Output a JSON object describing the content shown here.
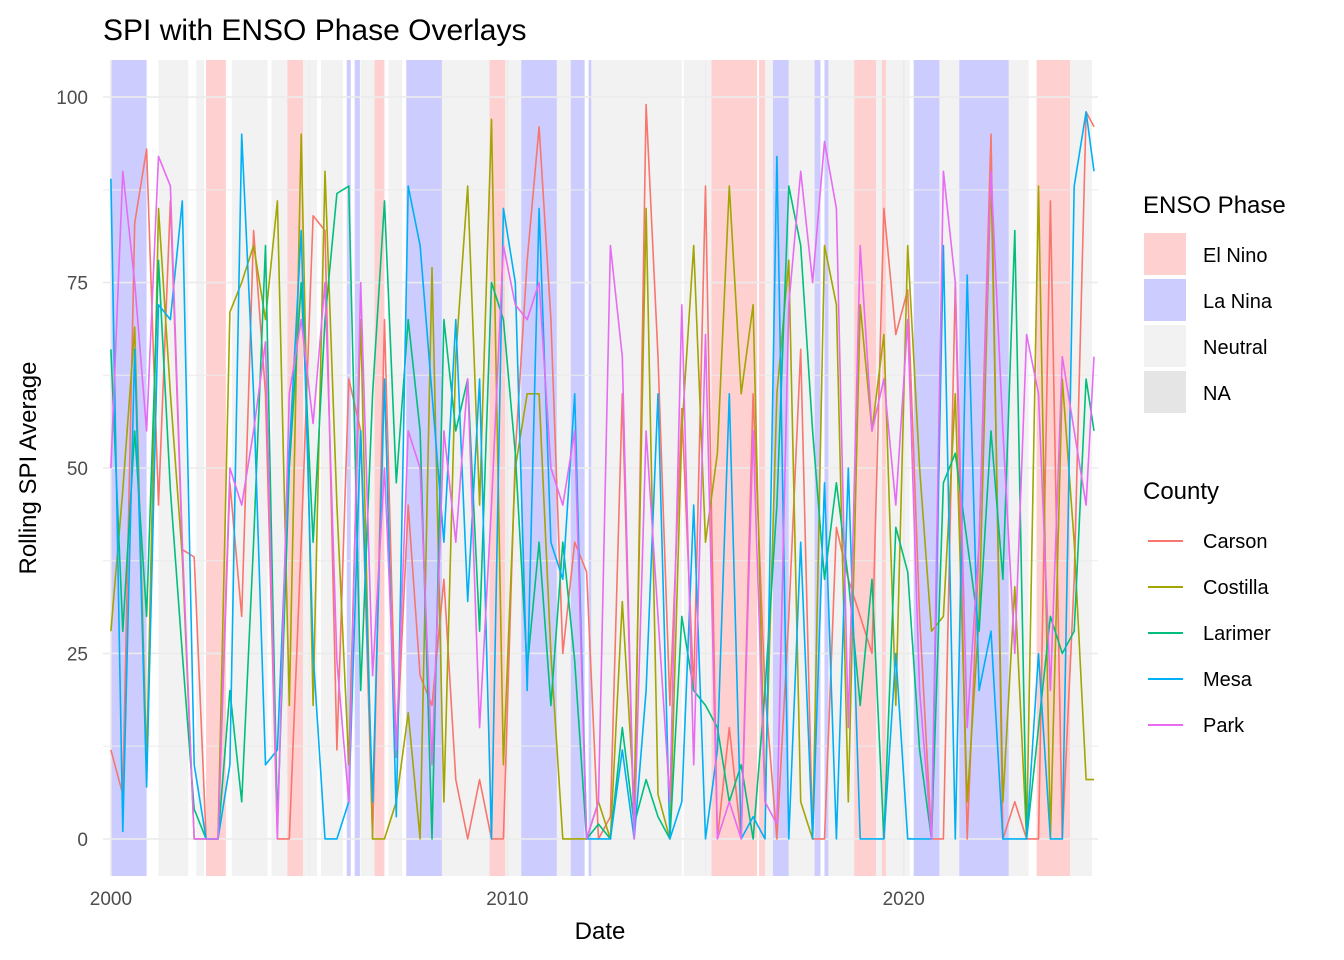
{
  "chart_data": {
    "type": "line",
    "title": "SPI with ENSO Phase Overlays",
    "xlabel": "Date",
    "ylabel": "Rolling SPI Average",
    "xlim": [
      1999.8,
      2024.9
    ],
    "ylim": [
      -5,
      105
    ],
    "x_ticks": [
      2000,
      2010,
      2020
    ],
    "x_tick_labels": [
      "2000",
      "2010",
      "2020"
    ],
    "y_ticks": [
      0,
      25,
      50,
      75,
      100
    ],
    "y_tick_labels": [
      "0",
      "25",
      "50",
      "75",
      "100"
    ],
    "grid": true,
    "legend_position": "right",
    "enso_legend": {
      "title": "ENSO Phase",
      "items": [
        {
          "label": "El Nino",
          "color": "#ffd0d0"
        },
        {
          "label": "La Nina",
          "color": "#ccccff"
        },
        {
          "label": "Neutral",
          "color": "#f2f2f2"
        },
        {
          "label": "NA",
          "color": "#e5e5e5"
        }
      ]
    },
    "enso_periods": [
      {
        "start": 2000.0,
        "end": 2000.9,
        "phase": "La Nina"
      },
      {
        "start": 2001.2,
        "end": 2001.95,
        "phase": "Neutral"
      },
      {
        "start": 2002.15,
        "end": 2002.35,
        "phase": "Neutral"
      },
      {
        "start": 2002.4,
        "end": 2002.9,
        "phase": "El Nino"
      },
      {
        "start": 2003.05,
        "end": 2003.95,
        "phase": "Neutral"
      },
      {
        "start": 2004.05,
        "end": 2004.45,
        "phase": "Neutral"
      },
      {
        "start": 2004.45,
        "end": 2004.85,
        "phase": "El Nino"
      },
      {
        "start": 2004.85,
        "end": 2005.2,
        "phase": "Neutral"
      },
      {
        "start": 2005.3,
        "end": 2005.85,
        "phase": "Neutral"
      },
      {
        "start": 2005.95,
        "end": 2006.05,
        "phase": "La Nina"
      },
      {
        "start": 2006.15,
        "end": 2006.28,
        "phase": "La Nina"
      },
      {
        "start": 2006.3,
        "end": 2006.65,
        "phase": "Neutral"
      },
      {
        "start": 2006.65,
        "end": 2006.9,
        "phase": "El Nino"
      },
      {
        "start": 2007.0,
        "end": 2007.35,
        "phase": "Neutral"
      },
      {
        "start": 2007.45,
        "end": 2008.35,
        "phase": "La Nina"
      },
      {
        "start": 2008.35,
        "end": 2009.55,
        "phase": "Neutral"
      },
      {
        "start": 2009.55,
        "end": 2009.95,
        "phase": "El Nino"
      },
      {
        "start": 2009.95,
        "end": 2010.35,
        "phase": "Neutral"
      },
      {
        "start": 2010.35,
        "end": 2011.25,
        "phase": "La Nina"
      },
      {
        "start": 2011.25,
        "end": 2011.6,
        "phase": "Neutral"
      },
      {
        "start": 2011.6,
        "end": 2011.95,
        "phase": "La Nina"
      },
      {
        "start": 2012.05,
        "end": 2012.12,
        "phase": "La Nina"
      },
      {
        "start": 2012.12,
        "end": 2014.4,
        "phase": "Neutral"
      },
      {
        "start": 2014.45,
        "end": 2015.0,
        "phase": "Neutral"
      },
      {
        "start": 2015.0,
        "end": 2015.15,
        "phase": "Neutral"
      },
      {
        "start": 2015.15,
        "end": 2016.3,
        "phase": "El Nino"
      },
      {
        "start": 2016.35,
        "end": 2016.5,
        "phase": "El Nino"
      },
      {
        "start": 2016.5,
        "end": 2016.7,
        "phase": "Neutral"
      },
      {
        "start": 2016.7,
        "end": 2017.1,
        "phase": "La Nina"
      },
      {
        "start": 2017.1,
        "end": 2017.75,
        "phase": "Neutral"
      },
      {
        "start": 2017.75,
        "end": 2017.9,
        "phase": "La Nina"
      },
      {
        "start": 2018.0,
        "end": 2018.1,
        "phase": "La Nina"
      },
      {
        "start": 2018.1,
        "end": 2018.75,
        "phase": "Neutral"
      },
      {
        "start": 2018.75,
        "end": 2019.3,
        "phase": "El Nino"
      },
      {
        "start": 2019.3,
        "end": 2019.45,
        "phase": "Neutral"
      },
      {
        "start": 2019.45,
        "end": 2019.55,
        "phase": "El Nino"
      },
      {
        "start": 2019.55,
        "end": 2020.15,
        "phase": "Neutral"
      },
      {
        "start": 2020.25,
        "end": 2020.9,
        "phase": "La Nina"
      },
      {
        "start": 2020.9,
        "end": 2021.4,
        "phase": "Neutral"
      },
      {
        "start": 2021.4,
        "end": 2022.65,
        "phase": "La Nina"
      },
      {
        "start": 2022.65,
        "end": 2023.15,
        "phase": "Neutral"
      },
      {
        "start": 2023.35,
        "end": 2024.2,
        "phase": "El Nino"
      },
      {
        "start": 2024.2,
        "end": 2024.75,
        "phase": "Neutral"
      }
    ],
    "county_legend_title": "County",
    "series": [
      {
        "name": "Carson",
        "color": "#F8766D",
        "x": [
          2000.0,
          2000.3,
          2000.6,
          2000.9,
          2001.2,
          2001.5,
          2001.8,
          2002.1,
          2002.4,
          2002.7,
          2003.0,
          2003.3,
          2003.6,
          2003.9,
          2004.2,
          2004.5,
          2004.8,
          2005.1,
          2005.4,
          2005.7,
          2006.0,
          2006.3,
          2006.6,
          2006.9,
          2007.2,
          2007.5,
          2007.8,
          2008.1,
          2008.4,
          2008.7,
          2009.0,
          2009.3,
          2009.6,
          2009.9,
          2010.2,
          2010.5,
          2010.8,
          2011.1,
          2011.4,
          2011.7,
          2012.0,
          2012.3,
          2012.6,
          2012.9,
          2013.2,
          2013.5,
          2013.8,
          2014.1,
          2014.4,
          2014.7,
          2015.0,
          2015.3,
          2015.6,
          2015.9,
          2016.2,
          2016.5,
          2016.8,
          2017.1,
          2017.4,
          2017.7,
          2018.0,
          2018.3,
          2018.6,
          2018.9,
          2019.2,
          2019.5,
          2019.8,
          2020.1,
          2020.4,
          2020.7,
          2021.0,
          2021.3,
          2021.6,
          2021.9,
          2022.2,
          2022.5,
          2022.8,
          2023.1,
          2023.4,
          2023.7,
          2024.0,
          2024.3,
          2024.6,
          2024.8
        ],
        "values": [
          12,
          6,
          83,
          93,
          45,
          86,
          39,
          38,
          0,
          0,
          48,
          30,
          82,
          60,
          0,
          0,
          40,
          84,
          82,
          12,
          62,
          55,
          0,
          70,
          11,
          45,
          22,
          18,
          35,
          8,
          0,
          8,
          0,
          0,
          52,
          78,
          96,
          70,
          25,
          40,
          36,
          0,
          3,
          60,
          0,
          99,
          65,
          18,
          58,
          20,
          88,
          0,
          15,
          0,
          60,
          20,
          0,
          30,
          66,
          0,
          0,
          42,
          35,
          30,
          25,
          85,
          68,
          74,
          30,
          0,
          0,
          75,
          0,
          40,
          95,
          0,
          5,
          0,
          0,
          86,
          0,
          35,
          98,
          96
        ]
      },
      {
        "name": "Costilla",
        "color": "#A3A500",
        "x": [
          2000.0,
          2000.3,
          2000.6,
          2000.9,
          2001.2,
          2001.5,
          2001.8,
          2002.1,
          2002.4,
          2002.7,
          2003.0,
          2003.3,
          2003.6,
          2003.9,
          2004.2,
          2004.5,
          2004.8,
          2005.1,
          2005.4,
          2005.7,
          2006.0,
          2006.3,
          2006.6,
          2006.9,
          2007.2,
          2007.5,
          2007.8,
          2008.1,
          2008.4,
          2008.7,
          2009.0,
          2009.3,
          2009.6,
          2009.9,
          2010.2,
          2010.5,
          2010.8,
          2011.1,
          2011.4,
          2011.7,
          2012.0,
          2012.3,
          2012.6,
          2012.9,
          2013.2,
          2013.5,
          2013.8,
          2014.1,
          2014.4,
          2014.7,
          2015.0,
          2015.3,
          2015.6,
          2015.9,
          2016.2,
          2016.5,
          2016.8,
          2017.1,
          2017.4,
          2017.7,
          2018.0,
          2018.3,
          2018.6,
          2018.9,
          2019.2,
          2019.5,
          2019.8,
          2020.1,
          2020.4,
          2020.7,
          2021.0,
          2021.3,
          2021.6,
          2021.9,
          2022.2,
          2022.5,
          2022.8,
          2023.1,
          2023.4,
          2023.7,
          2024.0,
          2024.3,
          2024.6,
          2024.8
        ],
        "values": [
          28,
          47,
          69,
          10,
          85,
          60,
          38,
          0,
          0,
          0,
          71,
          75,
          80,
          70,
          86,
          18,
          95,
          18,
          90,
          45,
          10,
          70,
          0,
          0,
          5,
          17,
          0,
          77,
          5,
          65,
          88,
          45,
          97,
          10,
          50,
          60,
          60,
          25,
          0,
          0,
          0,
          5,
          0,
          32,
          5,
          85,
          6,
          0,
          55,
          80,
          40,
          52,
          88,
          60,
          72,
          5,
          60,
          78,
          5,
          0,
          80,
          72,
          5,
          72,
          55,
          68,
          18,
          80,
          50,
          28,
          30,
          60,
          5,
          30,
          90,
          5,
          34,
          0,
          88,
          0,
          62,
          40,
          8,
          8
        ]
      },
      {
        "name": "Larimer",
        "color": "#00BF7D",
        "x": [
          2000.0,
          2000.3,
          2000.6,
          2000.9,
          2001.2,
          2001.5,
          2001.8,
          2002.1,
          2002.4,
          2002.7,
          2003.0,
          2003.3,
          2003.6,
          2003.9,
          2004.2,
          2004.5,
          2004.8,
          2005.1,
          2005.4,
          2005.7,
          2006.0,
          2006.3,
          2006.6,
          2006.9,
          2007.2,
          2007.5,
          2007.8,
          2008.1,
          2008.4,
          2008.7,
          2009.0,
          2009.3,
          2009.6,
          2009.9,
          2010.2,
          2010.5,
          2010.8,
          2011.1,
          2011.4,
          2011.7,
          2012.0,
          2012.3,
          2012.6,
          2012.9,
          2013.2,
          2013.5,
          2013.8,
          2014.1,
          2014.4,
          2014.7,
          2015.0,
          2015.3,
          2015.6,
          2015.9,
          2016.2,
          2016.5,
          2016.8,
          2017.1,
          2017.4,
          2017.7,
          2018.0,
          2018.3,
          2018.6,
          2018.9,
          2019.2,
          2019.5,
          2019.8,
          2020.1,
          2020.4,
          2020.7,
          2021.0,
          2021.3,
          2021.6,
          2021.9,
          2022.2,
          2022.5,
          2022.8,
          2023.1,
          2023.4,
          2023.7,
          2024.0,
          2024.3,
          2024.6,
          2024.8
        ],
        "values": [
          66,
          28,
          55,
          30,
          78,
          47,
          25,
          4,
          0,
          0,
          20,
          5,
          40,
          80,
          2,
          50,
          75,
          40,
          70,
          87,
          88,
          20,
          60,
          86,
          48,
          70,
          55,
          0,
          70,
          55,
          62,
          28,
          75,
          70,
          52,
          23,
          40,
          18,
          40,
          24,
          0,
          2,
          0,
          15,
          2,
          8,
          3,
          0,
          30,
          20,
          18,
          15,
          5,
          10,
          0,
          20,
          45,
          88,
          80,
          55,
          35,
          48,
          35,
          18,
          35,
          0,
          42,
          36,
          12,
          0,
          48,
          52,
          40,
          28,
          55,
          35,
          82,
          0,
          15,
          30,
          25,
          28,
          62,
          55
        ]
      },
      {
        "name": "Mesa",
        "color": "#00B0F6",
        "x": [
          2000.0,
          2000.3,
          2000.6,
          2000.9,
          2001.2,
          2001.5,
          2001.8,
          2002.1,
          2002.4,
          2002.7,
          2003.0,
          2003.3,
          2003.6,
          2003.9,
          2004.2,
          2004.5,
          2004.8,
          2005.1,
          2005.4,
          2005.7,
          2006.0,
          2006.3,
          2006.6,
          2006.9,
          2007.2,
          2007.5,
          2007.8,
          2008.1,
          2008.4,
          2008.7,
          2009.0,
          2009.3,
          2009.6,
          2009.9,
          2010.2,
          2010.5,
          2010.8,
          2011.1,
          2011.4,
          2011.7,
          2012.0,
          2012.3,
          2012.6,
          2012.9,
          2013.2,
          2013.5,
          2013.8,
          2014.1,
          2014.4,
          2014.7,
          2015.0,
          2015.3,
          2015.6,
          2015.9,
          2016.2,
          2016.5,
          2016.8,
          2017.1,
          2017.4,
          2017.7,
          2018.0,
          2018.3,
          2018.6,
          2018.9,
          2019.2,
          2019.5,
          2019.8,
          2020.1,
          2020.4,
          2020.7,
          2021.0,
          2021.3,
          2021.6,
          2021.9,
          2022.2,
          2022.5,
          2022.8,
          2023.1,
          2023.4,
          2023.7,
          2024.0,
          2024.3,
          2024.6,
          2024.8
        ],
        "values": [
          89,
          1,
          66,
          7,
          72,
          70,
          86,
          10,
          0,
          0,
          10,
          95,
          60,
          10,
          12,
          52,
          82,
          25,
          0,
          0,
          5,
          55,
          5,
          62,
          3,
          88,
          80,
          60,
          40,
          70,
          32,
          62,
          0,
          85,
          75,
          20,
          85,
          40,
          35,
          60,
          0,
          0,
          0,
          12,
          0,
          20,
          60,
          0,
          5,
          45,
          0,
          12,
          60,
          0,
          3,
          0,
          92,
          0,
          40,
          0,
          48,
          0,
          50,
          0,
          0,
          0,
          25,
          0,
          0,
          0,
          80,
          0,
          76,
          20,
          28,
          0,
          0,
          0,
          25,
          0,
          0,
          88,
          98,
          90
        ]
      },
      {
        "name": "Park",
        "color": "#E76BF3",
        "x": [
          2000.0,
          2000.3,
          2000.6,
          2000.9,
          2001.2,
          2001.5,
          2001.8,
          2002.1,
          2002.4,
          2002.7,
          2003.0,
          2003.3,
          2003.6,
          2003.9,
          2004.2,
          2004.5,
          2004.8,
          2005.1,
          2005.4,
          2005.7,
          2006.0,
          2006.3,
          2006.6,
          2006.9,
          2007.2,
          2007.5,
          2007.8,
          2008.1,
          2008.4,
          2008.7,
          2009.0,
          2009.3,
          2009.6,
          2009.9,
          2010.2,
          2010.5,
          2010.8,
          2011.1,
          2011.4,
          2011.7,
          2012.0,
          2012.3,
          2012.6,
          2012.9,
          2013.2,
          2013.5,
          2013.8,
          2014.1,
          2014.4,
          2014.7,
          2015.0,
          2015.3,
          2015.6,
          2015.9,
          2016.2,
          2016.5,
          2016.8,
          2017.1,
          2017.4,
          2017.7,
          2018.0,
          2018.3,
          2018.6,
          2018.9,
          2019.2,
          2019.5,
          2019.8,
          2020.1,
          2020.4,
          2020.7,
          2021.0,
          2021.3,
          2021.6,
          2021.9,
          2022.2,
          2022.5,
          2022.8,
          2023.1,
          2023.4,
          2023.7,
          2024.0,
          2024.3,
          2024.6,
          2024.8
        ],
        "values": [
          50,
          90,
          75,
          55,
          92,
          88,
          40,
          0,
          0,
          0,
          50,
          45,
          55,
          67,
          0,
          60,
          70,
          56,
          75,
          24,
          5,
          75,
          22,
          50,
          12,
          55,
          50,
          10,
          55,
          40,
          62,
          15,
          45,
          80,
          72,
          70,
          75,
          50,
          45,
          55,
          0,
          5,
          80,
          65,
          0,
          55,
          30,
          5,
          72,
          10,
          68,
          0,
          5,
          0,
          55,
          5,
          2,
          72,
          90,
          75,
          94,
          85,
          15,
          80,
          55,
          62,
          45,
          70,
          20,
          0,
          90,
          75,
          15,
          40,
          90,
          55,
          25,
          68,
          60,
          20,
          65,
          55,
          45,
          65
        ]
      }
    ]
  }
}
